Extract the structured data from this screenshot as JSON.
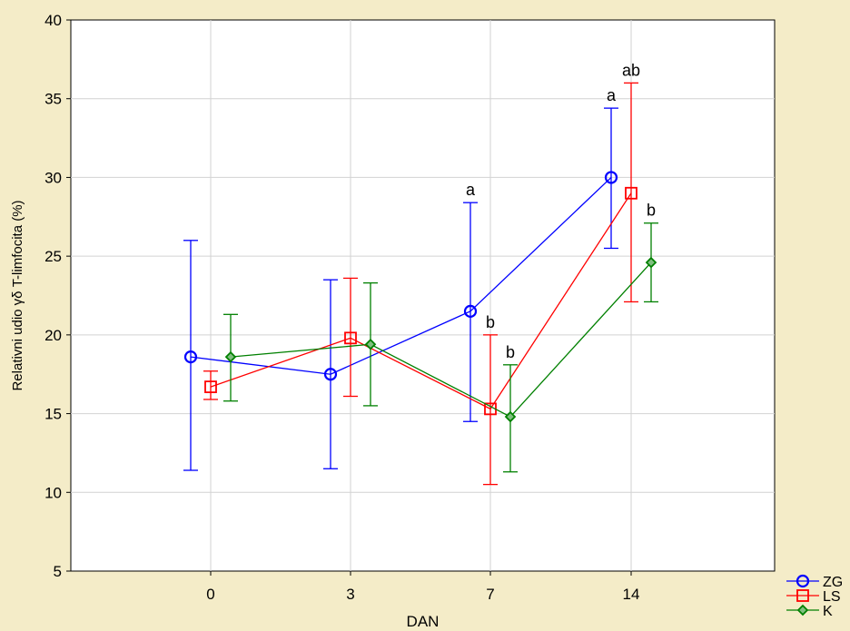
{
  "chart_data": {
    "type": "line",
    "title": "",
    "xlabel": "DAN",
    "ylabel": "Relativni udio γδ T-limfocita (%)",
    "categories": [
      "0",
      "3",
      "7",
      "14"
    ],
    "ylim": [
      5,
      40
    ],
    "yticks": [
      5,
      10,
      15,
      20,
      25,
      30,
      35,
      40
    ],
    "grid": true,
    "error_bars": true,
    "legend_position": "bottom-right, outside plot",
    "series": [
      {
        "name": "ZG",
        "color": "#0000ff",
        "marker": "circle",
        "values": [
          18.6,
          17.5,
          21.5,
          30.0
        ],
        "lower": [
          11.4,
          11.5,
          14.5,
          25.5
        ],
        "upper": [
          26.0,
          23.5,
          28.4,
          34.4
        ],
        "labels": [
          "",
          "",
          "a",
          "a"
        ]
      },
      {
        "name": "LS",
        "color": "#ff0000",
        "marker": "square",
        "values": [
          16.7,
          19.8,
          15.3,
          29.0
        ],
        "lower": [
          15.9,
          16.1,
          10.5,
          22.1
        ],
        "upper": [
          17.7,
          23.6,
          20.0,
          36.0
        ],
        "labels": [
          "",
          "",
          "b",
          "ab"
        ]
      },
      {
        "name": "K",
        "color": "#008000",
        "marker": "diamond",
        "values": [
          18.6,
          19.4,
          14.8,
          24.6
        ],
        "lower": [
          15.8,
          15.5,
          11.3,
          22.1
        ],
        "upper": [
          21.3,
          23.3,
          18.1,
          27.1
        ],
        "labels": [
          "",
          "",
          "b",
          "b"
        ]
      }
    ]
  }
}
